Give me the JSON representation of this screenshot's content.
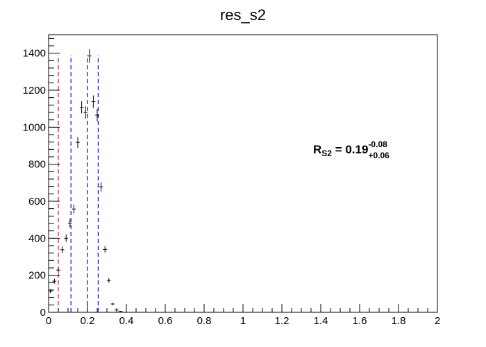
{
  "chart_data": {
    "type": "scatter",
    "title": "res_s2",
    "xlabel": "",
    "ylabel": "",
    "xlim": [
      0,
      2
    ],
    "ylim": [
      0,
      1500
    ],
    "x_major_ticks": [
      0,
      0.2,
      0.4,
      0.6,
      0.8,
      1,
      1.2,
      1.4,
      1.6,
      1.8,
      2
    ],
    "x_tick_labels": [
      "0",
      "0.2",
      "0.4",
      "0.6",
      "0.8",
      "1",
      "1.2",
      "1.4",
      "1.6",
      "1.8",
      "2"
    ],
    "y_major_ticks": [
      0,
      200,
      400,
      600,
      800,
      1000,
      1200,
      1400
    ],
    "y_tick_labels": [
      "0",
      "200",
      "400",
      "600",
      "800",
      "1000",
      "1200",
      "1400"
    ],
    "bin_half_width": 0.01,
    "series": [
      {
        "name": "res_s2",
        "points": [
          {
            "x": 0.01,
            "y": 115,
            "err": 11
          },
          {
            "x": 0.03,
            "y": 168,
            "err": 13
          },
          {
            "x": 0.05,
            "y": 228,
            "err": 15
          },
          {
            "x": 0.07,
            "y": 338,
            "err": 18
          },
          {
            "x": 0.09,
            "y": 400,
            "err": 20
          },
          {
            "x": 0.11,
            "y": 482,
            "err": 22
          },
          {
            "x": 0.13,
            "y": 558,
            "err": 24
          },
          {
            "x": 0.15,
            "y": 918,
            "err": 30
          },
          {
            "x": 0.17,
            "y": 1108,
            "err": 33
          },
          {
            "x": 0.19,
            "y": 1080,
            "err": 33
          },
          {
            "x": 0.21,
            "y": 1385,
            "err": 37
          },
          {
            "x": 0.23,
            "y": 1138,
            "err": 34
          },
          {
            "x": 0.25,
            "y": 1065,
            "err": 33
          },
          {
            "x": 0.27,
            "y": 678,
            "err": 26
          },
          {
            "x": 0.29,
            "y": 340,
            "err": 18
          },
          {
            "x": 0.31,
            "y": 172,
            "err": 13
          },
          {
            "x": 0.33,
            "y": 45,
            "err": 7
          },
          {
            "x": 0.35,
            "y": 12,
            "err": 3
          },
          {
            "x": 0.37,
            "y": 5,
            "err": 2
          }
        ]
      }
    ],
    "vertical_lines": [
      {
        "x": 0.05,
        "y_top": 1390,
        "color": "#ff0000",
        "style": "dashed"
      },
      {
        "x": 0.115,
        "y_top": 1390,
        "color": "#0000ff",
        "style": "dashed"
      },
      {
        "x": 0.2,
        "y_top": 1390,
        "color": "#0000ff",
        "style": "dashed"
      },
      {
        "x": 0.255,
        "y_top": 1390,
        "color": "#0000ff",
        "style": "dashed"
      }
    ],
    "annotation": {
      "base": "R",
      "base_sub": "S2",
      "value": " = 0.19",
      "sup": "-0.08",
      "sub": "+0.06"
    }
  }
}
